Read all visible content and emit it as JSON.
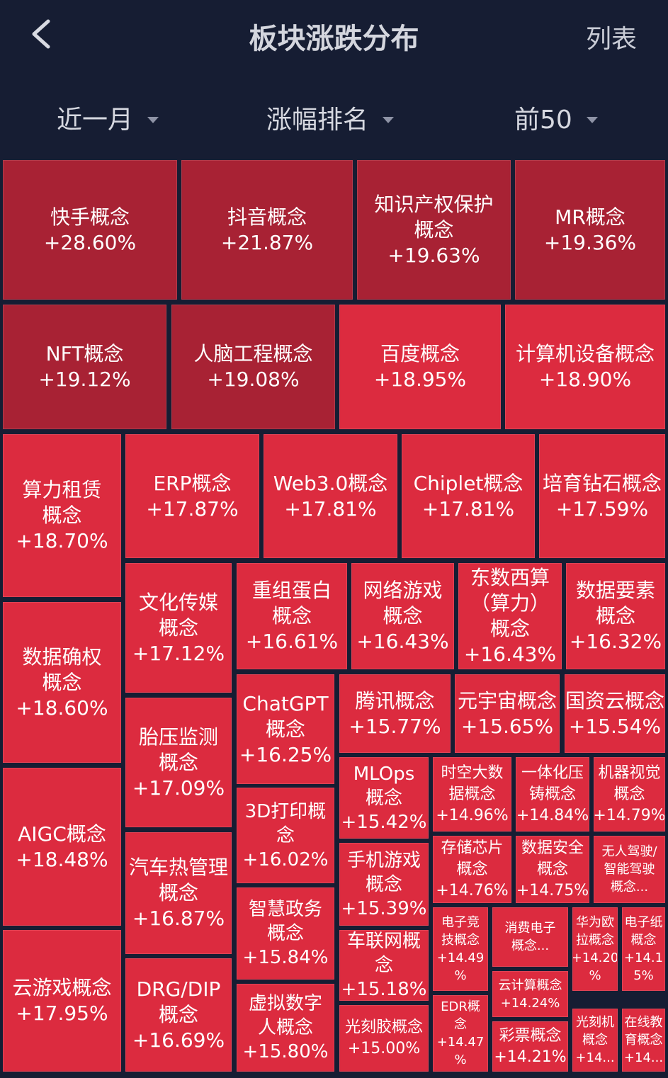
{
  "header": {
    "title": "板块涨跌分布",
    "right": "列表"
  },
  "filters": [
    {
      "label": "近一月"
    },
    {
      "label": "涨幅排名"
    },
    {
      "label": "前50"
    }
  ],
  "tiles": [
    {
      "l1": "快手概念",
      "val": "+28.60%"
    },
    {
      "l1": "抖音概念",
      "val": "+21.87%"
    },
    {
      "l1": "知识产权保护",
      "l2": "概念",
      "val": "+19.63%"
    },
    {
      "l1": "MR概念",
      "val": "+19.36%"
    },
    {
      "l1": "NFT概念",
      "val": "+19.12%"
    },
    {
      "l1": "人脑工程概念",
      "val": "+19.08%"
    },
    {
      "l1": "百度概念",
      "val": "+18.95%"
    },
    {
      "l1": "计算机设备概念",
      "val": "+18.90%"
    },
    {
      "l1": "算力租赁",
      "l2": "概念",
      "val": "+18.70%"
    },
    {
      "l1": "ERP概念",
      "val": "+17.87%"
    },
    {
      "l1": "Web3.0概念",
      "val": "+17.81%"
    },
    {
      "l1": "Chiplet概念",
      "val": "+17.81%"
    },
    {
      "l1": "培育钻石概念",
      "val": "+17.59%"
    },
    {
      "l1": "数据确权",
      "l2": "概念",
      "val": "+18.60%"
    },
    {
      "l1": "文化传媒",
      "l2": "概念",
      "val": "+17.12%"
    },
    {
      "l1": "重组蛋白",
      "l2": "概念",
      "val": "+16.61%"
    },
    {
      "l1": "网络游戏",
      "l2": "概念",
      "val": "+16.43%"
    },
    {
      "l1": "东数西算",
      "l2": "（算力）",
      "l3": "概念",
      "val": "+16.43%"
    },
    {
      "l1": "数据要素",
      "l2": "概念",
      "val": "+16.32%"
    },
    {
      "l1": "ChatGPT",
      "l2": "概念",
      "val": "+16.25%"
    },
    {
      "l1": "腾讯概念",
      "val": "+15.77%"
    },
    {
      "l1": "元宇宙概念",
      "val": "+15.65%"
    },
    {
      "l1": "国资云概念",
      "val": "+15.54%"
    },
    {
      "l1": "AIGC概念",
      "val": "+18.48%"
    },
    {
      "l1": "胎压监测",
      "l2": "概念",
      "val": "+17.09%"
    },
    {
      "l1": "3D打印概",
      "l2": "念",
      "val": "+16.02%"
    },
    {
      "l1": "MLOps",
      "l2": "概念",
      "val": "+15.42%"
    },
    {
      "l1": "时空大数",
      "l2": "据概念",
      "val": "+14.96%"
    },
    {
      "l1": "一体化压",
      "l2": "铸概念",
      "val": "+14.84%"
    },
    {
      "l1": "机器视觉",
      "l2": "概念",
      "val": "+14.79%"
    },
    {
      "l1": "手机游戏",
      "l2": "概念",
      "val": "+15.39%"
    },
    {
      "l1": "存储芯片",
      "l2": "概念",
      "val": "+14.76%"
    },
    {
      "l1": "数据安全",
      "l2": "概念",
      "val": "+14.75%"
    },
    {
      "l1": "无人驾驶/",
      "l2": "智能驾驶",
      "l3": "概念..."
    },
    {
      "l1": "汽车热管理",
      "l2": "概念",
      "val": "+16.87%"
    },
    {
      "l1": "智慧政务",
      "l2": "概念",
      "val": "+15.84%"
    },
    {
      "l1": "车联网概",
      "l2": "念",
      "val": "+15.18%"
    },
    {
      "l1": "电子竞",
      "l2": "技概念",
      "l3": "+14.49",
      "l4": "%"
    },
    {
      "l1": "消费电子",
      "l2": "概念..."
    },
    {
      "l1": "华为欧",
      "l2": "拉概念",
      "l3": "+14.20",
      "l4": "%"
    },
    {
      "l1": "电子纸",
      "l2": "概念",
      "l3": "+14.1",
      "l4": "5%"
    },
    {
      "l1": "云计算概念",
      "val": "+14.24%"
    },
    {
      "l1": "云游戏概念",
      "val": "+17.95%"
    },
    {
      "l1": "DRG/DIP",
      "l2": "概念",
      "val": "+16.69%"
    },
    {
      "l1": "虚拟数字",
      "l2": "人概念",
      "val": "+15.80%"
    },
    {
      "l1": "光刻胶概念",
      "val": "+15.00%"
    },
    {
      "l1": "EDR概",
      "l2": "念",
      "l3": "+14.47",
      "l4": "%"
    },
    {
      "l1": "彩票概念",
      "val": "+14.21%"
    },
    {
      "l1": "光刻机",
      "l2": "概念",
      "l3": "+14..."
    },
    {
      "l1": "在线教",
      "l2": "育概念",
      "l3": "+14..."
    }
  ]
}
